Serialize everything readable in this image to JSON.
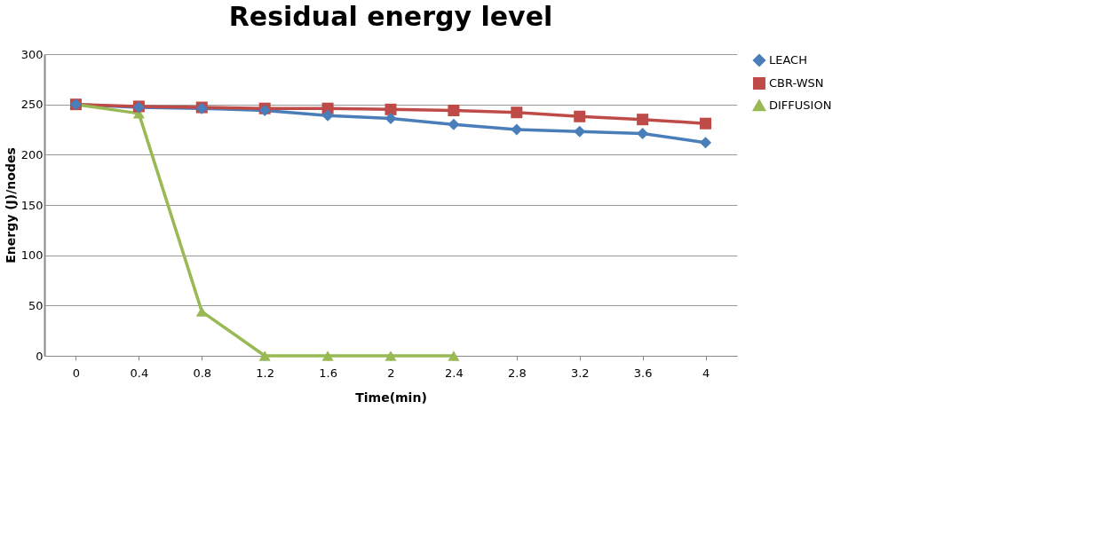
{
  "chart_data": {
    "type": "line",
    "title": "Residual energy level",
    "xlabel": "Time(min)",
    "ylabel": "Energy (J)/nodes",
    "categories": [
      "0",
      "0.4",
      "0.8",
      "1.2",
      "1.6",
      "2",
      "2.4",
      "2.8",
      "3.2",
      "3.6",
      "4"
    ],
    "series": [
      {
        "name": "LEACH",
        "color": "#4a7ebb",
        "marker": "diamond",
        "values": [
          250,
          247,
          246,
          244,
          239,
          236,
          230,
          225,
          223,
          221,
          212
        ]
      },
      {
        "name": "CBR-WSN",
        "color": "#be4b48",
        "marker": "square",
        "values": [
          250,
          248,
          247,
          246,
          246,
          245,
          244,
          242,
          238,
          235,
          231
        ]
      },
      {
        "name": "DIFFUSION",
        "color": "#98b954",
        "marker": "triangle",
        "values": [
          250,
          241,
          44,
          0,
          0,
          0,
          0,
          null,
          null,
          null,
          null
        ]
      }
    ],
    "ylim": [
      0,
      300
    ],
    "yticks": [
      0,
      50,
      100,
      150,
      200,
      250,
      300
    ],
    "grid": "y",
    "legend": "right",
    "line_style": "solid"
  }
}
